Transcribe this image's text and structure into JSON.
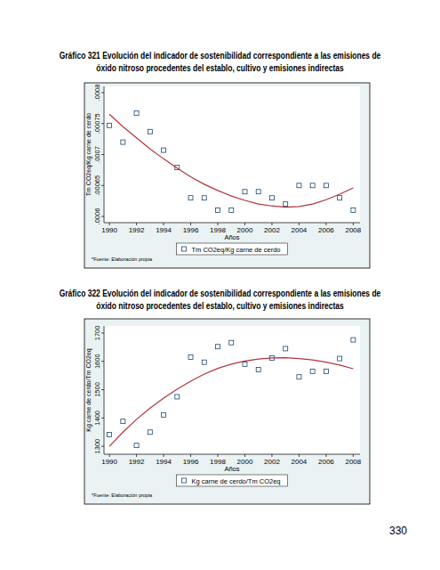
{
  "chart_data": [
    {
      "type": "scatter",
      "title": "Gráfico 321 Evolución del indicador de sostenibilidad correspondiente a las emisiones de óxido nitroso procedentes del establo, cultivo y emisiones indirectas",
      "x_label": "Años",
      "y_label": "Tm CO2eq/Kg carne de cerdo",
      "note": "*Fuente: Elaboración propia",
      "x": [
        1990,
        1991,
        1992,
        1993,
        1994,
        1995,
        1996,
        1997,
        1998,
        1999,
        2000,
        2001,
        2002,
        2003,
        2004,
        2005,
        2006,
        2007,
        2008
      ],
      "series": [
        {
          "name": "Tm CO2eq/Kg carne de cerdo",
          "type": "scatter",
          "marker": "hollow-square",
          "color": "#1a476f",
          "values": [
            0.000747,
            0.00072,
            0.000767,
            0.000737,
            0.000707,
            0.000679,
            0.00063,
            0.00063,
            0.00061,
            0.00061,
            0.00064,
            0.00064,
            0.00063,
            0.00062,
            0.00065,
            0.00065,
            0.00065,
            0.00063,
            0.00061
          ]
        },
        {
          "type": "line",
          "line_style": "solid",
          "color": "#b0353b",
          "values": [
            0.000765,
            0.000745,
            0.000727,
            0.000709,
            0.000693,
            0.000678,
            0.000664,
            0.000652,
            0.000642,
            0.000633,
            0.000626,
            0.00062,
            0.000617,
            0.000615,
            0.000616,
            0.00062,
            0.000627,
            0.000636,
            0.000646
          ]
        }
      ],
      "xlim": [
        1989.6,
        2008.5
      ],
      "xticks": [
        1990,
        1992,
        1994,
        1996,
        1998,
        2000,
        2002,
        2004,
        2006,
        2008
      ],
      "ylim": [
        0.00059,
        0.00081
      ],
      "yticks": [
        {
          "value": 0.0006,
          "label": ".0006"
        },
        {
          "value": 0.00065,
          "label": ".00065"
        },
        {
          "value": 0.0007,
          "label": ".0007"
        },
        {
          "value": 0.00075,
          "label": ".00075"
        },
        {
          "value": 0.0008,
          "label": ".0008"
        }
      ],
      "grid": false,
      "legend": "bottom"
    },
    {
      "type": "scatter",
      "title": "Gráfico 322 Evolución del indicador de sostenibilidad correspondiente a las emisiones de óxido nitroso procedentes del establo, cultivo y emisiones indirectas",
      "x_label": "Años",
      "y_label": "Kg carne de cerdo/Tm CO2eq",
      "note": "*Fuente: Elaboración propia",
      "x": [
        1990,
        1991,
        1992,
        1993,
        1994,
        1995,
        1996,
        1997,
        1998,
        1999,
        2000,
        2001,
        2002,
        2003,
        2004,
        2005,
        2006,
        2007,
        2008
      ],
      "series": [
        {
          "name": "Kg carne de cerdo/Tm CO2eq",
          "type": "scatter",
          "marker": "hollow-square",
          "color": "#1a476f",
          "values": [
            1341,
            1388,
            1303,
            1350,
            1411,
            1475,
            1615,
            1597,
            1652,
            1666,
            1590,
            1571,
            1612,
            1645,
            1545,
            1565,
            1565,
            1610,
            1676
          ]
        },
        {
          "type": "line",
          "line_style": "solid",
          "color": "#b0353b",
          "values": [
            1300,
            1350,
            1395,
            1435,
            1470,
            1502,
            1530,
            1555,
            1575,
            1590,
            1601,
            1608,
            1612,
            1613,
            1610,
            1605,
            1597,
            1587,
            1574
          ]
        }
      ],
      "xlim": [
        1989.6,
        2008.5
      ],
      "xticks": [
        1990,
        1992,
        1994,
        1996,
        1998,
        2000,
        2002,
        2004,
        2006,
        2008
      ],
      "ylim": [
        1272,
        1725
      ],
      "yticks": [
        1300,
        1400,
        1500,
        1600,
        1700
      ],
      "grid": false,
      "legend": "bottom"
    }
  ],
  "page_number": "330"
}
